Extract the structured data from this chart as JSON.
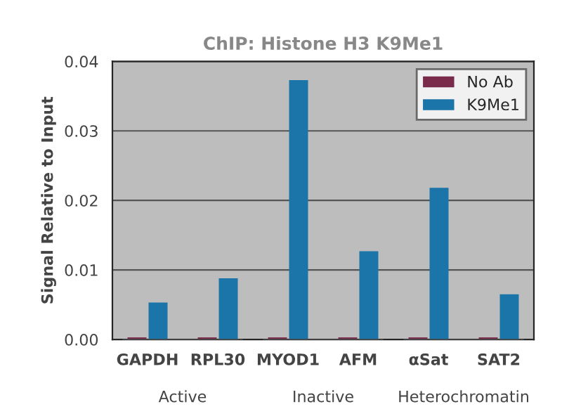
{
  "chart_data": {
    "type": "bar",
    "title": "ChIP: Histone H3 K9Me1",
    "ylabel": "Signal Relative to Input",
    "categories": [
      "GAPDH",
      "RPL30",
      "MYOD1",
      "AFM",
      "αSat",
      "SAT2"
    ],
    "series": [
      {
        "name": "No Ab",
        "color": "#7a2a4a",
        "values": [
          0.0003,
          0.0003,
          0.0003,
          0.0003,
          0.0003,
          0.0003
        ]
      },
      {
        "name": "K9Me1",
        "color": "#1b75a8",
        "values": [
          0.0053,
          0.0088,
          0.0373,
          0.0127,
          0.0218,
          0.0065
        ]
      }
    ],
    "ylim": [
      0,
      0.04
    ],
    "yticks": [
      {
        "value": 0,
        "label": "0.00"
      },
      {
        "value": 0.01,
        "label": "0.01"
      },
      {
        "value": 0.02,
        "label": "0.02"
      },
      {
        "value": 0.03,
        "label": "0.03"
      },
      {
        "value": 0.04,
        "label": "0.04"
      }
    ],
    "annotations": [
      "Active",
      "Inactive",
      "Heterochromatin"
    ],
    "grid": "y",
    "legend": "top right"
  }
}
